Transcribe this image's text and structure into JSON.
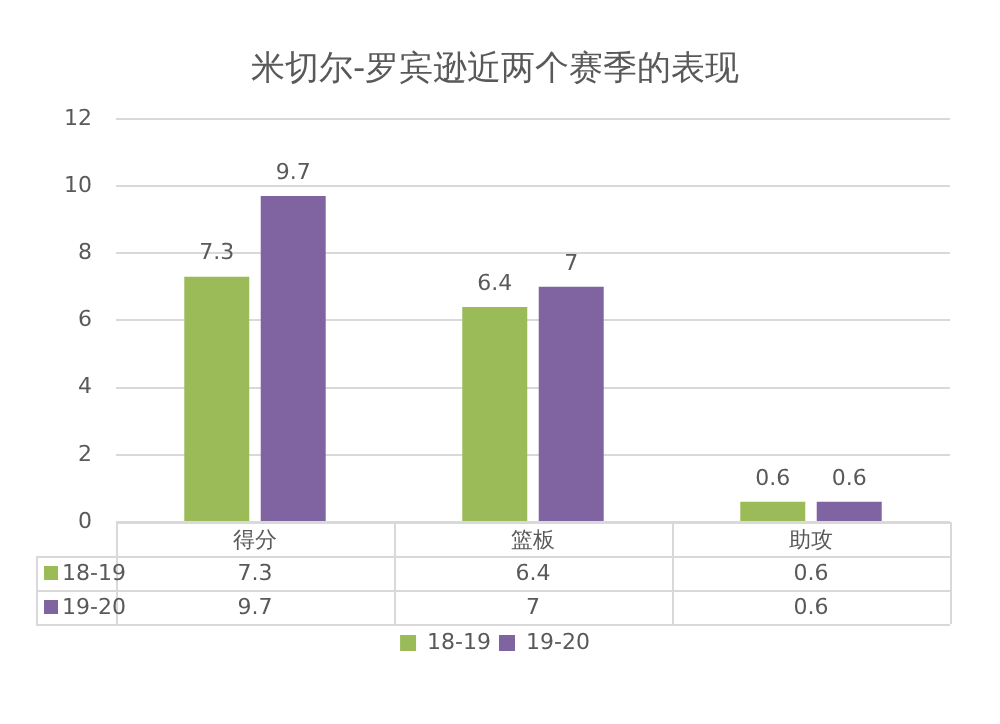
{
  "chart_data": {
    "type": "bar",
    "title": "米切尔-罗宾逊近两个赛季的表现",
    "categories": [
      "得分",
      "篮板",
      "助攻"
    ],
    "series": [
      {
        "name": "18-19",
        "color": "#9bbb59",
        "values": [
          7.3,
          6.4,
          0.6
        ],
        "value_labels": [
          "7.3",
          "6.4",
          "0.6"
        ]
      },
      {
        "name": "19-20",
        "color": "#8064a2",
        "values": [
          9.7,
          7,
          0.6
        ],
        "value_labels": [
          "9.7",
          "7",
          "0.6"
        ]
      }
    ],
    "annotations": [
      "7.3",
      "6.4",
      "0.6",
      "9.7",
      "7",
      "0.6"
    ],
    "ylim": [
      0,
      12
    ],
    "yticks": [
      0,
      2,
      4,
      6,
      8,
      10,
      12
    ],
    "grid": "y",
    "legend": "bottom"
  }
}
